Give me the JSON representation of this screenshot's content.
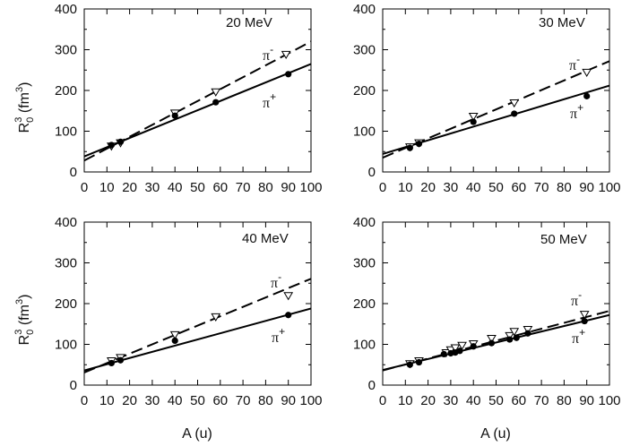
{
  "figure": {
    "xlabel": "A (u)",
    "ylabel": {
      "main": "R",
      "sub": "0",
      "sup": "3",
      "unit_open": " (fm",
      "unit_sup": "3",
      "unit_close": ")"
    }
  },
  "chart_data": [
    {
      "type": "scatter",
      "energy_label": "20 MeV",
      "xlim": [
        0,
        100
      ],
      "ylim": [
        0,
        400
      ],
      "xticks": [
        0,
        10,
        20,
        30,
        40,
        50,
        60,
        70,
        80,
        90,
        100
      ],
      "yticks": [
        0,
        100,
        200,
        300,
        400
      ],
      "series": [
        {
          "name": "π-",
          "marker": "open-triangle-down",
          "line": "dashed",
          "fit": {
            "intercept": 28,
            "slope": 2.92
          },
          "points": [
            [
              12,
              64
            ],
            [
              16,
              72
            ],
            [
              40,
              145
            ],
            [
              58,
              197
            ],
            [
              89,
              289
            ]
          ]
        },
        {
          "name": "π+",
          "marker": "filled-circle",
          "line": "solid",
          "fit": {
            "intercept": 38,
            "slope": 2.27
          },
          "points": [
            [
              12,
              66
            ],
            [
              16,
              74
            ],
            [
              40,
              138
            ],
            [
              58,
              171
            ],
            [
              90,
              240
            ]
          ]
        }
      ]
    },
    {
      "type": "scatter",
      "energy_label": "30 MeV",
      "xlim": [
        0,
        100
      ],
      "ylim": [
        0,
        400
      ],
      "xticks": [
        0,
        10,
        20,
        30,
        40,
        50,
        60,
        70,
        80,
        90,
        100
      ],
      "yticks": [
        0,
        100,
        200,
        300,
        400
      ],
      "series": [
        {
          "name": "π-",
          "marker": "open-triangle-down",
          "line": "dashed",
          "fit": {
            "intercept": 35,
            "slope": 2.37
          },
          "points": [
            [
              12,
              62
            ],
            [
              16,
              72
            ],
            [
              40,
              137
            ],
            [
              58,
              170
            ],
            [
              90,
              245
            ]
          ]
        },
        {
          "name": "π+",
          "marker": "filled-circle",
          "line": "solid",
          "fit": {
            "intercept": 44,
            "slope": 1.68
          },
          "points": [
            [
              12,
              59
            ],
            [
              16,
              69
            ],
            [
              40,
              123
            ],
            [
              58,
              143
            ],
            [
              90,
              186
            ]
          ]
        }
      ]
    },
    {
      "type": "scatter",
      "energy_label": "40 MeV",
      "xlim": [
        0,
        100
      ],
      "ylim": [
        0,
        400
      ],
      "xticks": [
        0,
        10,
        20,
        30,
        40,
        50,
        60,
        70,
        80,
        90,
        100
      ],
      "yticks": [
        0,
        100,
        200,
        300,
        400
      ],
      "series": [
        {
          "name": "π-",
          "marker": "open-triangle-down",
          "line": "dashed",
          "fit": {
            "intercept": 31,
            "slope": 2.3
          },
          "points": [
            [
              12,
              60
            ],
            [
              16,
              68
            ],
            [
              40,
              124
            ],
            [
              58,
              168
            ],
            [
              90,
              220
            ]
          ]
        },
        {
          "name": "π+",
          "marker": "filled-circle",
          "line": "solid",
          "fit": {
            "intercept": 36,
            "slope": 1.52
          },
          "points": [
            [
              12,
              54
            ],
            [
              16,
              61
            ],
            [
              40,
              109
            ],
            [
              90,
              172
            ]
          ]
        }
      ]
    },
    {
      "type": "scatter",
      "energy_label": "50 MeV",
      "xlim": [
        0,
        100
      ],
      "ylim": [
        0,
        400
      ],
      "xticks": [
        0,
        10,
        20,
        30,
        40,
        50,
        60,
        70,
        80,
        90,
        100
      ],
      "yticks": [
        0,
        100,
        200,
        300,
        400
      ],
      "series": [
        {
          "name": "π-",
          "marker": "open-triangle-down",
          "line": "dashed",
          "fit": {
            "intercept": 36,
            "slope": 1.46
          },
          "points": [
            [
              12,
              53
            ],
            [
              16,
              60
            ],
            [
              28,
              80
            ],
            [
              30,
              87
            ],
            [
              32,
              92
            ],
            [
              35,
              98
            ],
            [
              40,
              102
            ],
            [
              48,
              115
            ],
            [
              56,
              122
            ],
            [
              58,
              132
            ],
            [
              64,
              137
            ],
            [
              89,
              174
            ]
          ]
        },
        {
          "name": "π+",
          "marker": "filled-circle",
          "line": "solid",
          "fit": {
            "intercept": 37,
            "slope": 1.35
          },
          "points": [
            [
              12,
              50
            ],
            [
              16,
              56
            ],
            [
              27,
              76
            ],
            [
              30,
              78
            ],
            [
              32,
              80
            ],
            [
              34,
              84
            ],
            [
              40,
              95
            ],
            [
              48,
              103
            ],
            [
              56,
              112
            ],
            [
              59,
              116
            ],
            [
              64,
              127
            ],
            [
              89,
              157
            ]
          ]
        }
      ]
    }
  ]
}
